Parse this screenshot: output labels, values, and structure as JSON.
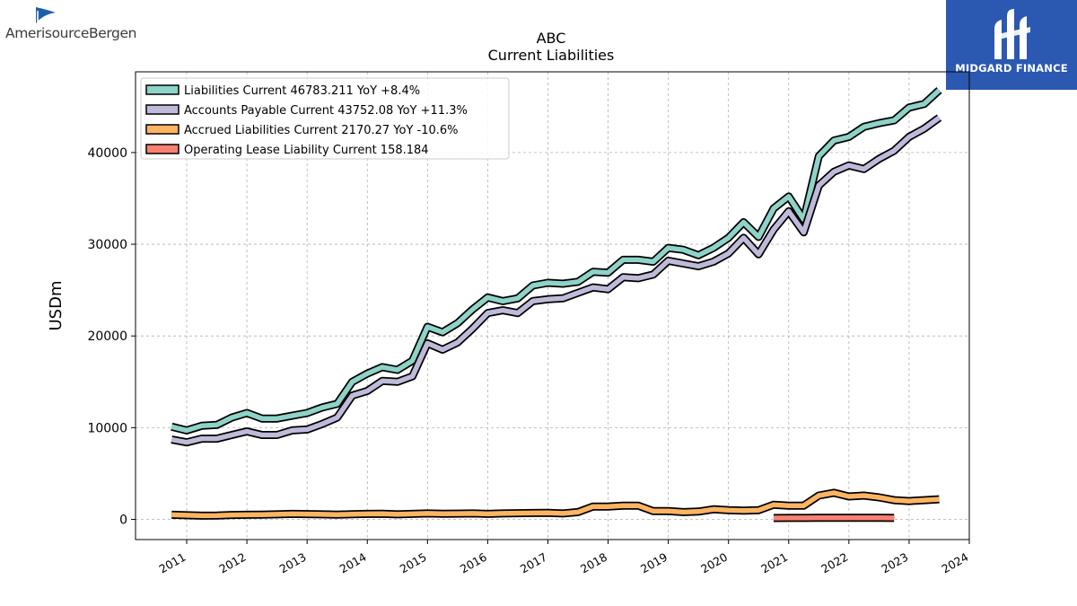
{
  "logo_left": {
    "name": "AmerisourceBergen",
    "icon": "amerisourcebergen-logo-icon"
  },
  "logo_right": {
    "name": "MIDGARD FINANCE",
    "icon": "midgard-logo-icon",
    "color": "#2b58b0"
  },
  "chart_data": {
    "type": "line",
    "title": "ABC",
    "subtitle": "Current  Liabilities",
    "ylabel": "USDm",
    "xlabel": "",
    "xlim": [
      2010.15,
      2024.0
    ],
    "ylim": [
      -2200,
      48800
    ],
    "yticks": [
      0,
      10000,
      20000,
      30000,
      40000
    ],
    "xticks": [
      2011,
      2012,
      2013,
      2014,
      2015,
      2016,
      2017,
      2018,
      2019,
      2020,
      2021,
      2022,
      2023,
      2024
    ],
    "grid": true,
    "legend_position": "top-left",
    "series": [
      {
        "name": "Liabilities Current  46783.211 YoY +8.4%",
        "color": "#8dd3c7",
        "x": [
          2010.75,
          2011.0,
          2011.25,
          2011.5,
          2011.75,
          2012.0,
          2012.25,
          2012.5,
          2012.75,
          2013.0,
          2013.25,
          2013.5,
          2013.75,
          2014.0,
          2014.25,
          2014.5,
          2014.75,
          2015.0,
          2015.25,
          2015.5,
          2015.75,
          2016.0,
          2016.25,
          2016.5,
          2016.75,
          2017.0,
          2017.25,
          2017.5,
          2017.75,
          2018.0,
          2018.25,
          2018.5,
          2018.75,
          2019.0,
          2019.25,
          2019.5,
          2019.75,
          2020.0,
          2020.25,
          2020.5,
          2020.75,
          2021.0,
          2021.25,
          2021.5,
          2021.75,
          2022.0,
          2022.25,
          2022.5,
          2022.75,
          2023.0,
          2023.25,
          2023.5
        ],
        "values": [
          10100,
          9700,
          10200,
          10300,
          11100,
          11600,
          11000,
          11000,
          11300,
          11600,
          12200,
          12600,
          15000,
          15900,
          16600,
          16300,
          17300,
          21000,
          20400,
          21400,
          22900,
          24200,
          23800,
          24100,
          25500,
          25800,
          25700,
          25900,
          27000,
          26900,
          28300,
          28300,
          28100,
          29600,
          29400,
          28800,
          29600,
          30700,
          32400,
          30800,
          33900,
          35200,
          32700,
          39600,
          41300,
          41700,
          42800,
          43200,
          43500,
          44900,
          45300,
          46800
        ]
      },
      {
        "name": "Accounts Payable Current  43752.08 YoY +11.3%",
        "color": "#bebada",
        "x": [
          2010.75,
          2011.0,
          2011.25,
          2011.5,
          2011.75,
          2012.0,
          2012.25,
          2012.5,
          2012.75,
          2013.0,
          2013.25,
          2013.5,
          2013.75,
          2014.0,
          2014.25,
          2014.5,
          2014.75,
          2015.0,
          2015.25,
          2015.5,
          2015.75,
          2016.0,
          2016.25,
          2016.5,
          2016.75,
          2017.0,
          2017.25,
          2017.5,
          2017.75,
          2018.0,
          2018.25,
          2018.5,
          2018.75,
          2019.0,
          2019.25,
          2019.5,
          2019.75,
          2020.0,
          2020.25,
          2020.5,
          2020.75,
          2021.0,
          2021.25,
          2021.5,
          2021.75,
          2022.0,
          2022.25,
          2022.5,
          2022.75,
          2023.0,
          2023.25,
          2023.5
        ],
        "values": [
          8700,
          8400,
          8800,
          8800,
          9200,
          9600,
          9200,
          9200,
          9700,
          9800,
          10400,
          11100,
          13500,
          14000,
          15100,
          15000,
          15600,
          19200,
          18500,
          19300,
          20800,
          22500,
          22800,
          22500,
          23800,
          24000,
          24100,
          24700,
          25300,
          25100,
          26400,
          26300,
          26700,
          28200,
          27900,
          27600,
          28100,
          29000,
          30700,
          28900,
          31600,
          33600,
          31300,
          36400,
          37900,
          38600,
          38200,
          39300,
          40200,
          41700,
          42600,
          43800
        ]
      },
      {
        "name": "Accrued Liabilities Current  2170.27 YoY -10.6%",
        "color": "#fdb462",
        "x": [
          2010.75,
          2011.0,
          2011.25,
          2011.5,
          2011.75,
          2012.0,
          2012.25,
          2012.5,
          2012.75,
          2013.0,
          2013.25,
          2013.5,
          2013.75,
          2014.0,
          2014.25,
          2014.5,
          2014.75,
          2015.0,
          2015.25,
          2015.5,
          2015.75,
          2016.0,
          2016.25,
          2016.5,
          2016.75,
          2017.0,
          2017.25,
          2017.5,
          2017.75,
          2018.0,
          2018.25,
          2018.5,
          2018.75,
          2019.0,
          2019.25,
          2019.5,
          2019.75,
          2020.0,
          2020.25,
          2020.5,
          2020.75,
          2021.0,
          2021.25,
          2021.5,
          2021.75,
          2022.0,
          2022.25,
          2022.5,
          2022.75,
          2023.0,
          2023.25,
          2023.5
        ],
        "values": [
          500,
          450,
          400,
          420,
          480,
          500,
          520,
          550,
          600,
          580,
          550,
          520,
          560,
          600,
          620,
          550,
          600,
          650,
          620,
          630,
          650,
          600,
          650,
          680,
          700,
          720,
          650,
          800,
          1400,
          1400,
          1500,
          1500,
          900,
          900,
          800,
          850,
          1100,
          1000,
          950,
          1000,
          1600,
          1500,
          1500,
          2600,
          2900,
          2500,
          2600,
          2400,
          2100,
          2000,
          2100,
          2200
        ]
      },
      {
        "name": "Operating Lease Liability Current  158.184",
        "color": "#fb8072",
        "x": [
          2020.75,
          2021.0,
          2021.25,
          2021.5,
          2021.75,
          2022.0,
          2022.25,
          2022.5,
          2022.75
        ],
        "values": [
          150,
          155,
          160,
          165,
          170,
          175,
          170,
          165,
          160
        ]
      }
    ]
  }
}
